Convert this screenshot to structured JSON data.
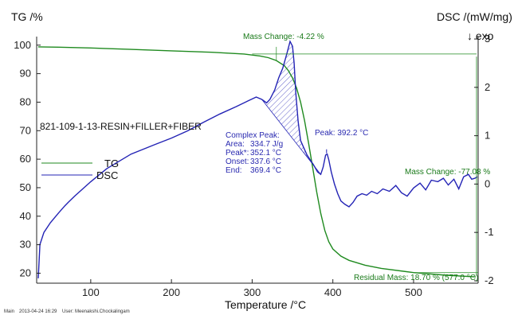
{
  "chart_data": {
    "type": "line",
    "xlabel": "Temperature /°C",
    "ylabel_left": "TG /%",
    "ylabel_right": "DSC /(mW/mg)",
    "exo_label": "↓ exo",
    "sample_label": "821-109-1-13-RESIN+FILLER+FIBER",
    "xlim": [
      33,
      580
    ],
    "ylim_left": [
      16.5,
      103
    ],
    "ylim_right": [
      -2.05,
      3.05
    ],
    "x_ticks": [
      100,
      200,
      300,
      400,
      500
    ],
    "y_ticks_left": [
      20,
      30,
      40,
      50,
      60,
      70,
      80,
      90,
      100
    ],
    "y_ticks_right": [
      -2,
      -1,
      0,
      1,
      2,
      3
    ],
    "legend": [
      {
        "name": "TG",
        "color": "#1f8a1f"
      },
      {
        "name": "DSC",
        "color": "#2323b5"
      }
    ],
    "series": [
      {
        "name": "TG",
        "axis": "left",
        "color": "#1f8a1f",
        "x": [
          35,
          60,
          100,
          150,
          200,
          250,
          290,
          310,
          320,
          330,
          340,
          345,
          350,
          355,
          360,
          365,
          370,
          375,
          380,
          385,
          390,
          395,
          400,
          410,
          420,
          440,
          460,
          500,
          540,
          577
        ],
        "y": [
          99.4,
          99.3,
          99.0,
          98.5,
          98.0,
          97.5,
          96.9,
          96.2,
          95.6,
          94.6,
          92.8,
          91.0,
          88.5,
          85.0,
          80.0,
          73.5,
          65.5,
          57.0,
          48.5,
          41.0,
          35.0,
          31.0,
          28.5,
          26.0,
          24.5,
          22.8,
          21.7,
          20.2,
          19.3,
          18.7
        ]
      },
      {
        "name": "DSC",
        "axis": "right",
        "color": "#2323b5",
        "x": [
          35,
          37,
          42,
          50,
          60,
          68,
          72,
          80,
          100,
          120,
          150,
          180,
          200,
          220,
          240,
          260,
          280,
          295,
          305,
          312,
          318,
          322,
          328,
          333,
          338,
          343,
          347,
          350,
          352,
          354,
          357,
          360,
          364,
          368,
          372,
          376,
          381,
          385,
          388,
          391,
          393,
          395,
          398,
          402,
          406,
          410,
          415,
          420,
          425,
          430,
          436,
          442,
          448,
          455,
          462,
          470,
          478,
          485,
          492,
          500,
          508,
          515,
          522,
          530,
          537,
          543,
          550,
          556,
          562,
          568,
          572,
          576,
          579
        ],
        "y": [
          -1.95,
          -1.25,
          -1.0,
          -0.8,
          -0.6,
          -0.45,
          -0.38,
          -0.25,
          0.05,
          0.32,
          0.62,
          0.82,
          0.95,
          1.1,
          1.28,
          1.45,
          1.6,
          1.72,
          1.8,
          1.75,
          1.68,
          1.75,
          1.95,
          2.2,
          2.4,
          2.7,
          2.95,
          2.85,
          2.5,
          1.9,
          1.3,
          0.9,
          0.75,
          0.6,
          0.5,
          0.4,
          0.25,
          0.2,
          0.35,
          0.6,
          0.62,
          0.5,
          0.25,
          0.0,
          -0.2,
          -0.35,
          -0.42,
          -0.47,
          -0.38,
          -0.25,
          -0.2,
          -0.23,
          -0.15,
          -0.2,
          -0.1,
          -0.15,
          -0.03,
          -0.18,
          -0.25,
          -0.08,
          0.02,
          -0.12,
          0.08,
          0.05,
          0.12,
          -0.02,
          0.1,
          -0.1,
          0.15,
          0.2,
          0.1,
          0.12,
          0.15
        ]
      }
    ],
    "annotations": {
      "mass_change_1": "Mass Change: -4.22 %",
      "mass_change_2": "Mass Change: -77.08 %",
      "residual_mass": "Residual Mass: 18.70 % (577.0 °C)",
      "peak": "Peak: 392.2 °C",
      "complex_peak": {
        "title": "Complex Peak:",
        "lines": [
          {
            "label": "Area:",
            "value": "334.7 J/g"
          },
          {
            "label": "Peak*:",
            "value": "352.1 °C"
          },
          {
            "label": "Onset:",
            "value": "337.6 °C"
          },
          {
            "label": "End:",
            "value": "369.4 °C"
          }
        ]
      }
    },
    "grid": false
  },
  "footer": {
    "main": "Main",
    "date": "2013-04-24 16:29",
    "user": "User: Meenakshi.Chockalingam"
  }
}
